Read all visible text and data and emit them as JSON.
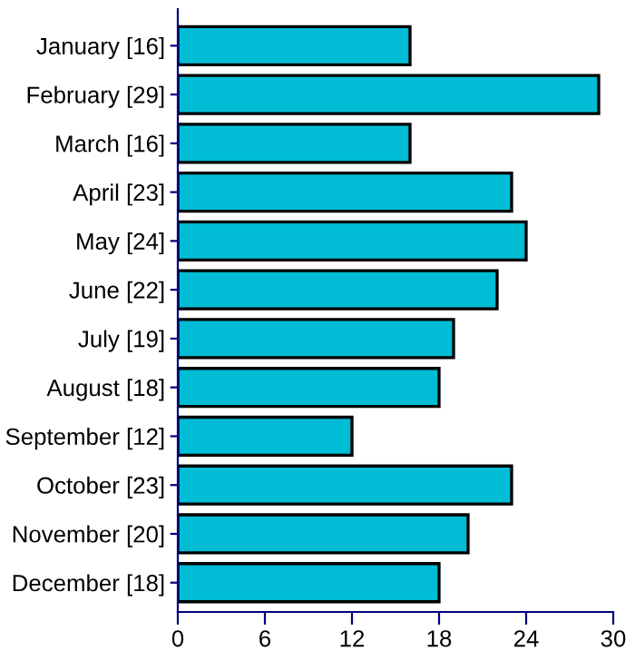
{
  "chart_data": {
    "type": "bar",
    "orientation": "horizontal",
    "categories": [
      "January [16]",
      "February [29]",
      "March [16]",
      "April [23]",
      "May [24]",
      "June [22]",
      "July [19]",
      "August [18]",
      "September [12]",
      "October [23]",
      "November [20]",
      "December [18]"
    ],
    "values": [
      16,
      29,
      16,
      23,
      24,
      22,
      19,
      18,
      12,
      23,
      20,
      18
    ],
    "color": "#00bcd4",
    "xlim": [
      0,
      30
    ],
    "xticks": [
      0,
      6,
      12,
      18,
      24,
      30
    ],
    "grid": false,
    "legend": false
  }
}
